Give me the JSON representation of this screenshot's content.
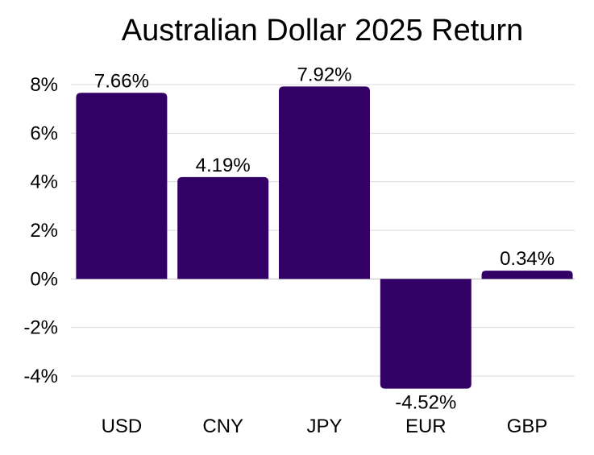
{
  "chart_data": {
    "type": "bar",
    "title": "Australian Dollar 2025 Return",
    "xlabel": "",
    "ylabel": "",
    "categories": [
      "USD",
      "CNY",
      "JPY",
      "EUR",
      "GBP"
    ],
    "values": [
      7.66,
      4.19,
      7.92,
      -4.52,
      0.34
    ],
    "data_labels": [
      "7.66%",
      "4.19%",
      "7.92%",
      "-4.52%",
      "0.34%"
    ],
    "ylim": [
      -4,
      8
    ],
    "yticks": [
      8,
      6,
      4,
      2,
      0,
      -2,
      -4
    ],
    "ytick_labels": [
      "8%",
      "6%",
      "4%",
      "2%",
      "0%",
      "-2%",
      "-4%"
    ],
    "grid": true,
    "legend": "none",
    "bar_color": "#330066"
  }
}
